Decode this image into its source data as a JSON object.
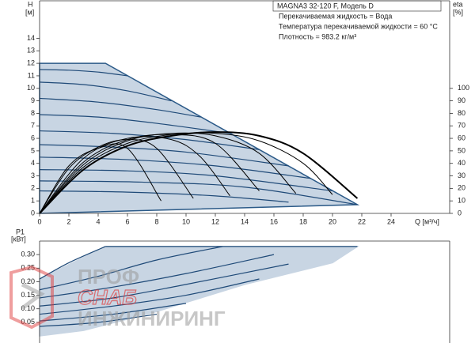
{
  "chart_data": [
    {
      "type": "line",
      "model": "MAGNA3 32-120 F, Модель D",
      "annotations": [
        "Перекачиваемая жидкость = Вода",
        "Температура перекачиваемой жидкости = 60 °C",
        "Плотность = 983.2 кг/м³"
      ],
      "y_label": "H",
      "y_unit": "[м]",
      "y2_label": "eta",
      "y2_unit": "[%]",
      "x_label": "Q [м³/ч]",
      "xlim": [
        0,
        28
      ],
      "xticks": [
        0,
        2,
        4,
        6,
        8,
        10,
        12,
        14,
        16,
        18,
        20,
        22,
        24
      ],
      "ylim": [
        0,
        17
      ],
      "yticks": [
        0,
        1,
        2,
        3,
        4,
        5,
        6,
        7,
        8,
        9,
        10,
        11,
        12,
        13,
        14
      ],
      "y2lim": [
        0,
        170
      ],
      "y2ticks": [
        0,
        10,
        20,
        30,
        40,
        50,
        60,
        70,
        80,
        90,
        100
      ],
      "series": [
        {
          "x": [
            0,
            4.5,
            21.7,
            0
          ],
          "values": [
            12,
            12,
            0.7,
            0
          ],
          "color": "#2b5a88",
          "fill": "#c8d5e3"
        },
        {
          "x": [
            0,
            2,
            4,
            6
          ],
          "values": [
            11.5,
            11.45,
            11.3,
            11.0
          ],
          "color": "#1f4a78"
        },
        {
          "x": [
            0,
            3,
            6,
            9
          ],
          "values": [
            10.5,
            10.3,
            9.8,
            9.0
          ],
          "color": "#1f4a78"
        },
        {
          "x": [
            0,
            4,
            8,
            11
          ],
          "values": [
            9.2,
            8.9,
            8.3,
            7.7
          ],
          "color": "#1f4a78"
        },
        {
          "x": [
            0,
            4,
            8,
            13
          ],
          "values": [
            7.9,
            7.7,
            7.2,
            6.4
          ],
          "color": "#1f4a78"
        },
        {
          "x": [
            0,
            5,
            10,
            15
          ],
          "values": [
            6.6,
            6.4,
            5.9,
            5.1
          ],
          "color": "#1f4a78"
        },
        {
          "x": [
            0,
            5,
            10,
            17
          ],
          "values": [
            5.5,
            5.3,
            4.9,
            3.8
          ],
          "color": "#1f4a78"
        },
        {
          "x": [
            0,
            6,
            12,
            18.5
          ],
          "values": [
            4.5,
            4.3,
            3.8,
            2.8
          ],
          "color": "#1f4a78"
        },
        {
          "x": [
            0,
            6,
            12,
            20
          ],
          "values": [
            3.5,
            3.4,
            3.0,
            1.8
          ],
          "color": "#1f4a78"
        },
        {
          "x": [
            0,
            7,
            14,
            21.7
          ],
          "values": [
            2.6,
            2.5,
            2.1,
            0.7
          ],
          "color": "#1f4a78"
        },
        {
          "x": [
            0,
            6,
            12,
            17
          ],
          "values": [
            1.8,
            1.7,
            1.4,
            0.9
          ],
          "color": "#1f4a78"
        },
        {
          "x": [
            0,
            3,
            6,
            9,
            12,
            15,
            18,
            21.7
          ],
          "values": [
            0,
            35,
            54,
            62,
            65,
            62,
            48,
            12
          ],
          "color": "#000000",
          "axis": "y2",
          "width": 2
        },
        {
          "x": [
            0,
            3,
            6,
            9,
            12,
            15,
            18,
            20
          ],
          "values": [
            0,
            37,
            56,
            63,
            64,
            58,
            40,
            15
          ],
          "color": "#000000",
          "axis": "y2",
          "width": 1
        },
        {
          "x": [
            0,
            3,
            6,
            9,
            12,
            15,
            17.5
          ],
          "values": [
            0,
            39,
            58,
            64,
            62,
            48,
            16
          ],
          "color": "#000000",
          "axis": "y2",
          "width": 1
        },
        {
          "x": [
            0,
            3,
            6,
            9,
            12,
            15
          ],
          "values": [
            0,
            41,
            59,
            63,
            56,
            18
          ],
          "color": "#000000",
          "axis": "y2",
          "width": 1
        },
        {
          "x": [
            0,
            3,
            6,
            9,
            11,
            13
          ],
          "values": [
            0,
            44,
            60,
            59,
            45,
            14
          ],
          "color": "#000000",
          "axis": "y2",
          "width": 1
        },
        {
          "x": [
            0,
            2,
            4,
            6,
            8,
            10.5
          ],
          "values": [
            0,
            36,
            53,
            59,
            52,
            12
          ],
          "color": "#000000",
          "axis": "y2",
          "width": 1
        },
        {
          "x": [
            0,
            2,
            4,
            6,
            8.3
          ],
          "values": [
            0,
            38,
            52,
            52,
            10
          ],
          "color": "#000000",
          "axis": "y2",
          "width": 1
        }
      ]
    },
    {
      "type": "line",
      "y_label": "P1",
      "y_unit": "[кВт]",
      "xlim": [
        0,
        28
      ],
      "ylim": [
        0,
        0.35
      ],
      "yticks": [
        0.05,
        {
          "value": 0.1,
          "label": "0.10"
        },
        0.15,
        {
          "value": 0.2,
          "label": "0.20"
        },
        0.25,
        {
          "value": 0.3,
          "label": "0.30"
        }
      ],
      "series": [
        {
          "x": [
            0,
            4.5,
            21.7,
            20,
            14,
            8,
            3,
            0
          ],
          "values": [
            0.21,
            0.33,
            0.33,
            0.27,
            0.19,
            0.09,
            0.02,
            0
          ],
          "color": "#c8d5e3",
          "fill": "#c8d5e3"
        },
        {
          "x": [
            4.5,
            21.7
          ],
          "values": [
            0.33,
            0.33
          ],
          "color": "#1f4a78"
        },
        {
          "x": [
            0,
            2,
            4.5
          ],
          "values": [
            0.21,
            0.27,
            0.33
          ],
          "color": "#1f4a78"
        },
        {
          "x": [
            0,
            4,
            8,
            12.5
          ],
          "values": [
            0.17,
            0.22,
            0.28,
            0.33
          ],
          "color": "#1f4a78"
        },
        {
          "x": [
            0,
            5,
            10,
            16
          ],
          "values": [
            0.14,
            0.18,
            0.23,
            0.3
          ],
          "color": "#1f4a78"
        },
        {
          "x": [
            0,
            5,
            10,
            17
          ],
          "values": [
            0.11,
            0.14,
            0.19,
            0.265
          ],
          "color": "#1f4a78"
        },
        {
          "x": [
            0,
            5,
            10,
            15
          ],
          "values": [
            0.08,
            0.11,
            0.15,
            0.21
          ],
          "color": "#1f4a78"
        },
        {
          "x": [
            0,
            5,
            10
          ],
          "values": [
            0.055,
            0.08,
            0.12
          ],
          "color": "#1f4a78"
        },
        {
          "x": [
            0,
            4,
            8
          ],
          "values": [
            0.035,
            0.05,
            0.08
          ],
          "color": "#1f4a78"
        }
      ]
    }
  ],
  "watermark": {
    "line1": "ПРОФ",
    "line2": "СНАБ",
    "line3": "ИНЖИНИРИНГ"
  }
}
